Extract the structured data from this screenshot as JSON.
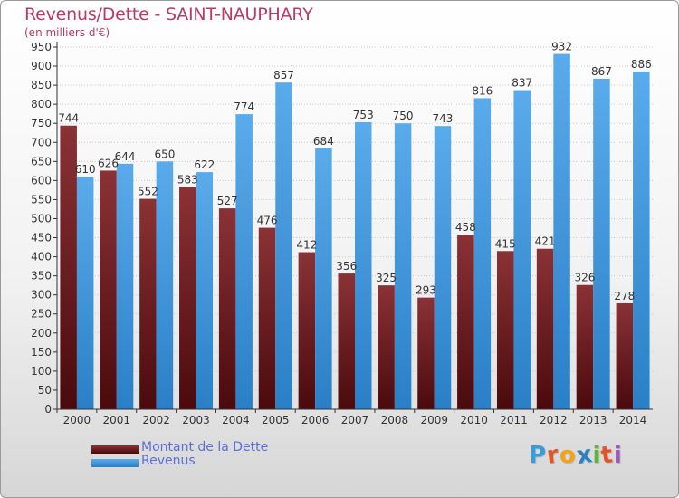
{
  "header": {
    "title": "Revenus/Dette - SAINT-NAUPHARY",
    "subtitle": "(en milliers d'€)"
  },
  "legend": {
    "items": [
      {
        "label": "Montant de la Dette",
        "color": "#6b1a1d"
      },
      {
        "label": "Revenus",
        "color": "#3c95dd"
      }
    ]
  },
  "logo": {
    "text": "Proxiti",
    "colors": [
      "#3a9bd9",
      "#e0552a",
      "#f2a31b",
      "#2e7fc0",
      "#5fb33b",
      "#e0552a",
      "#9b59b6"
    ]
  },
  "chart_data": {
    "type": "bar",
    "title": "Revenus/Dette - SAINT-NAUPHARY",
    "subtitle": "(en milliers d'€)",
    "categories": [
      "2000",
      "2001",
      "2002",
      "2003",
      "2004",
      "2005",
      "2006",
      "2007",
      "2008",
      "2009",
      "2010",
      "2011",
      "2012",
      "2013",
      "2014"
    ],
    "series": [
      {
        "name": "Montant de la Dette",
        "color": "#6b1a1d",
        "values": [
          744,
          626,
          552,
          583,
          527,
          476,
          412,
          356,
          325,
          293,
          458,
          415,
          421,
          326,
          278
        ]
      },
      {
        "name": "Revenus",
        "color": "#3c95dd",
        "values": [
          610,
          644,
          650,
          622,
          774,
          857,
          684,
          753,
          750,
          743,
          816,
          837,
          932,
          867,
          886
        ]
      }
    ],
    "y_ticks": [
      "0",
      "50",
      "100",
      "150",
      "200",
      "250",
      "300",
      "350",
      "400",
      "450",
      "500",
      "550",
      "600",
      "650",
      "700",
      "750",
      "800",
      "850",
      "900",
      "950"
    ],
    "ylim": [
      0,
      950
    ],
    "grid": true,
    "legend_position": "bottom-left"
  }
}
